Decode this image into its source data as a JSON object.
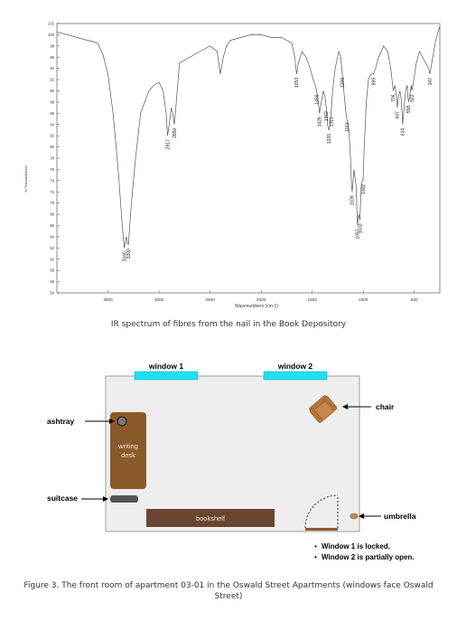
{
  "spectrum": {
    "y_axis_label": "% Transmittance",
    "x_axis_label": "Wavenumbers (cm-1)",
    "y_ticks": [
      "102",
      "100",
      "98",
      "96",
      "94",
      "92",
      "90",
      "88",
      "86",
      "84",
      "82",
      "80",
      "78",
      "76",
      "74",
      "72",
      "70",
      "68",
      "66",
      "64",
      "62",
      "60",
      "58",
      "56",
      "54"
    ],
    "x_ticks": [
      "3500",
      "3000",
      "2500",
      "2000",
      "1500",
      "1000",
      "500"
    ],
    "peak_labels": [
      "3340",
      "3300",
      "2917",
      "2850",
      "1653",
      "1456",
      "1429",
      "1362",
      "1335",
      "1315",
      "1205",
      "1161",
      "1109",
      "1057",
      "1033",
      "1002",
      "899",
      "706",
      "667",
      "614",
      "558",
      "522",
      "347"
    ],
    "caption": "IR spectrum of fibres from the nail in the Book Depository"
  },
  "chart_data": {
    "type": "line",
    "title": "",
    "xlabel": "Wavenumbers (cm-1)",
    "ylabel": "% Transmittance",
    "xlim": [
      4000,
      250
    ],
    "ylim": [
      54,
      102
    ],
    "x_reversed": true,
    "series": [
      {
        "x": [
          4000,
          3900,
          3800,
          3700,
          3650,
          3600,
          3550,
          3500,
          3450,
          3400,
          3360,
          3340,
          3320,
          3300,
          3270,
          3230,
          3180,
          3100,
          3050,
          3000,
          2960,
          2930,
          2917,
          2900,
          2880,
          2865,
          2850,
          2835,
          2800,
          2700,
          2600,
          2500,
          2430,
          2400,
          2370,
          2340,
          2300,
          2200,
          2100,
          2000,
          1900,
          1800,
          1700,
          1670,
          1653,
          1635,
          1600,
          1560,
          1520,
          1490,
          1470,
          1456,
          1440,
          1429,
          1410,
          1390,
          1375,
          1362,
          1350,
          1335,
          1325,
          1315,
          1300,
          1275,
          1240,
          1220,
          1205,
          1190,
          1175,
          1161,
          1140,
          1125,
          1115,
          1109,
          1090,
          1070,
          1057,
          1045,
          1033,
          1020,
          1010,
          1002,
          990,
          970,
          950,
          925,
          899,
          880,
          850,
          800,
          760,
          730,
          706,
          690,
          675,
          667,
          655,
          640,
          625,
          614,
          600,
          585,
          570,
          558,
          545,
          530,
          522,
          505,
          480,
          450,
          420,
          390,
          360,
          347,
          320,
          290,
          260,
          250
        ],
        "y": [
          100.5,
          100,
          99.5,
          99,
          98.8,
          98.5,
          96.5,
          93,
          86,
          76,
          66,
          62,
          64,
          62.5,
          70,
          78,
          86,
          90,
          91,
          91.5,
          90,
          86,
          82,
          84,
          87,
          86,
          84,
          87,
          95,
          96,
          97,
          98,
          97,
          93,
          96,
          98,
          99,
          99.5,
          100,
          100,
          99.5,
          99.5,
          98.5,
          96,
          93,
          95,
          97,
          96,
          94,
          92,
          91,
          90,
          88,
          86,
          88,
          90,
          89,
          87,
          84,
          83,
          84,
          86,
          90,
          94,
          97,
          96,
          93,
          90,
          87,
          85,
          83,
          78,
          73,
          72,
          76,
          73,
          66,
          68,
          67,
          73,
          74,
          74,
          80,
          88,
          92,
          93,
          93,
          94,
          96,
          98,
          97,
          94,
          90,
          91,
          89,
          87,
          89,
          90,
          88,
          84,
          87,
          90,
          91,
          88,
          89,
          91,
          90,
          92,
          95,
          97,
          96,
          95,
          94,
          93,
          96,
          99,
          101,
          101.5
        ]
      }
    ],
    "peak_labels": [
      3340,
      3300,
      2917,
      2850,
      1653,
      1456,
      1429,
      1362,
      1335,
      1315,
      1205,
      1161,
      1109,
      1057,
      1033,
      1002,
      899,
      706,
      667,
      614,
      558,
      522,
      347
    ]
  },
  "floorplan": {
    "window1_label": "window 1",
    "window2_label": "window 2",
    "chair_label": "chair",
    "ashtray_label": "ashtray",
    "desk_label_line1": "writing",
    "desk_label_line2": "desk",
    "suitcase_label": "suitcase",
    "bookshelf_label": "bookshelf",
    "umbrella_label": "umbrella",
    "notes": [
      "Window 1 is locked.",
      "Window 2 is partially open."
    ],
    "caption": "Figure 3. The front room of apartment 03-01 in the Oswald Street Apartments (windows face Oswald Street)",
    "colors": {
      "room_fill": "#eeeeee",
      "window": "#1ee0f0",
      "desk": "#8b5a2b",
      "bookshelf": "#6b4532",
      "chair": "#c8874a",
      "suitcase": "#555555"
    }
  }
}
